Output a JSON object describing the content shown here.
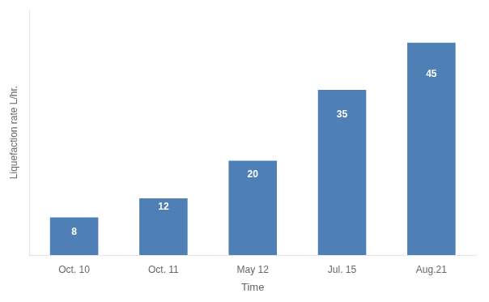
{
  "chart_data": {
    "type": "bar",
    "categories": [
      "Oct. 10",
      "Oct. 11",
      "May 12",
      "Jul. 15",
      "Aug.21"
    ],
    "values": [
      8,
      12,
      20,
      35,
      45
    ],
    "color": "#4e7fb5",
    "xlabel": "Time",
    "ylabel": "Liquefaction rate L/hr.",
    "ylim": [
      0,
      52
    ],
    "yticks": [],
    "grid": false,
    "data_labels": true,
    "tick_labels": "x"
  }
}
